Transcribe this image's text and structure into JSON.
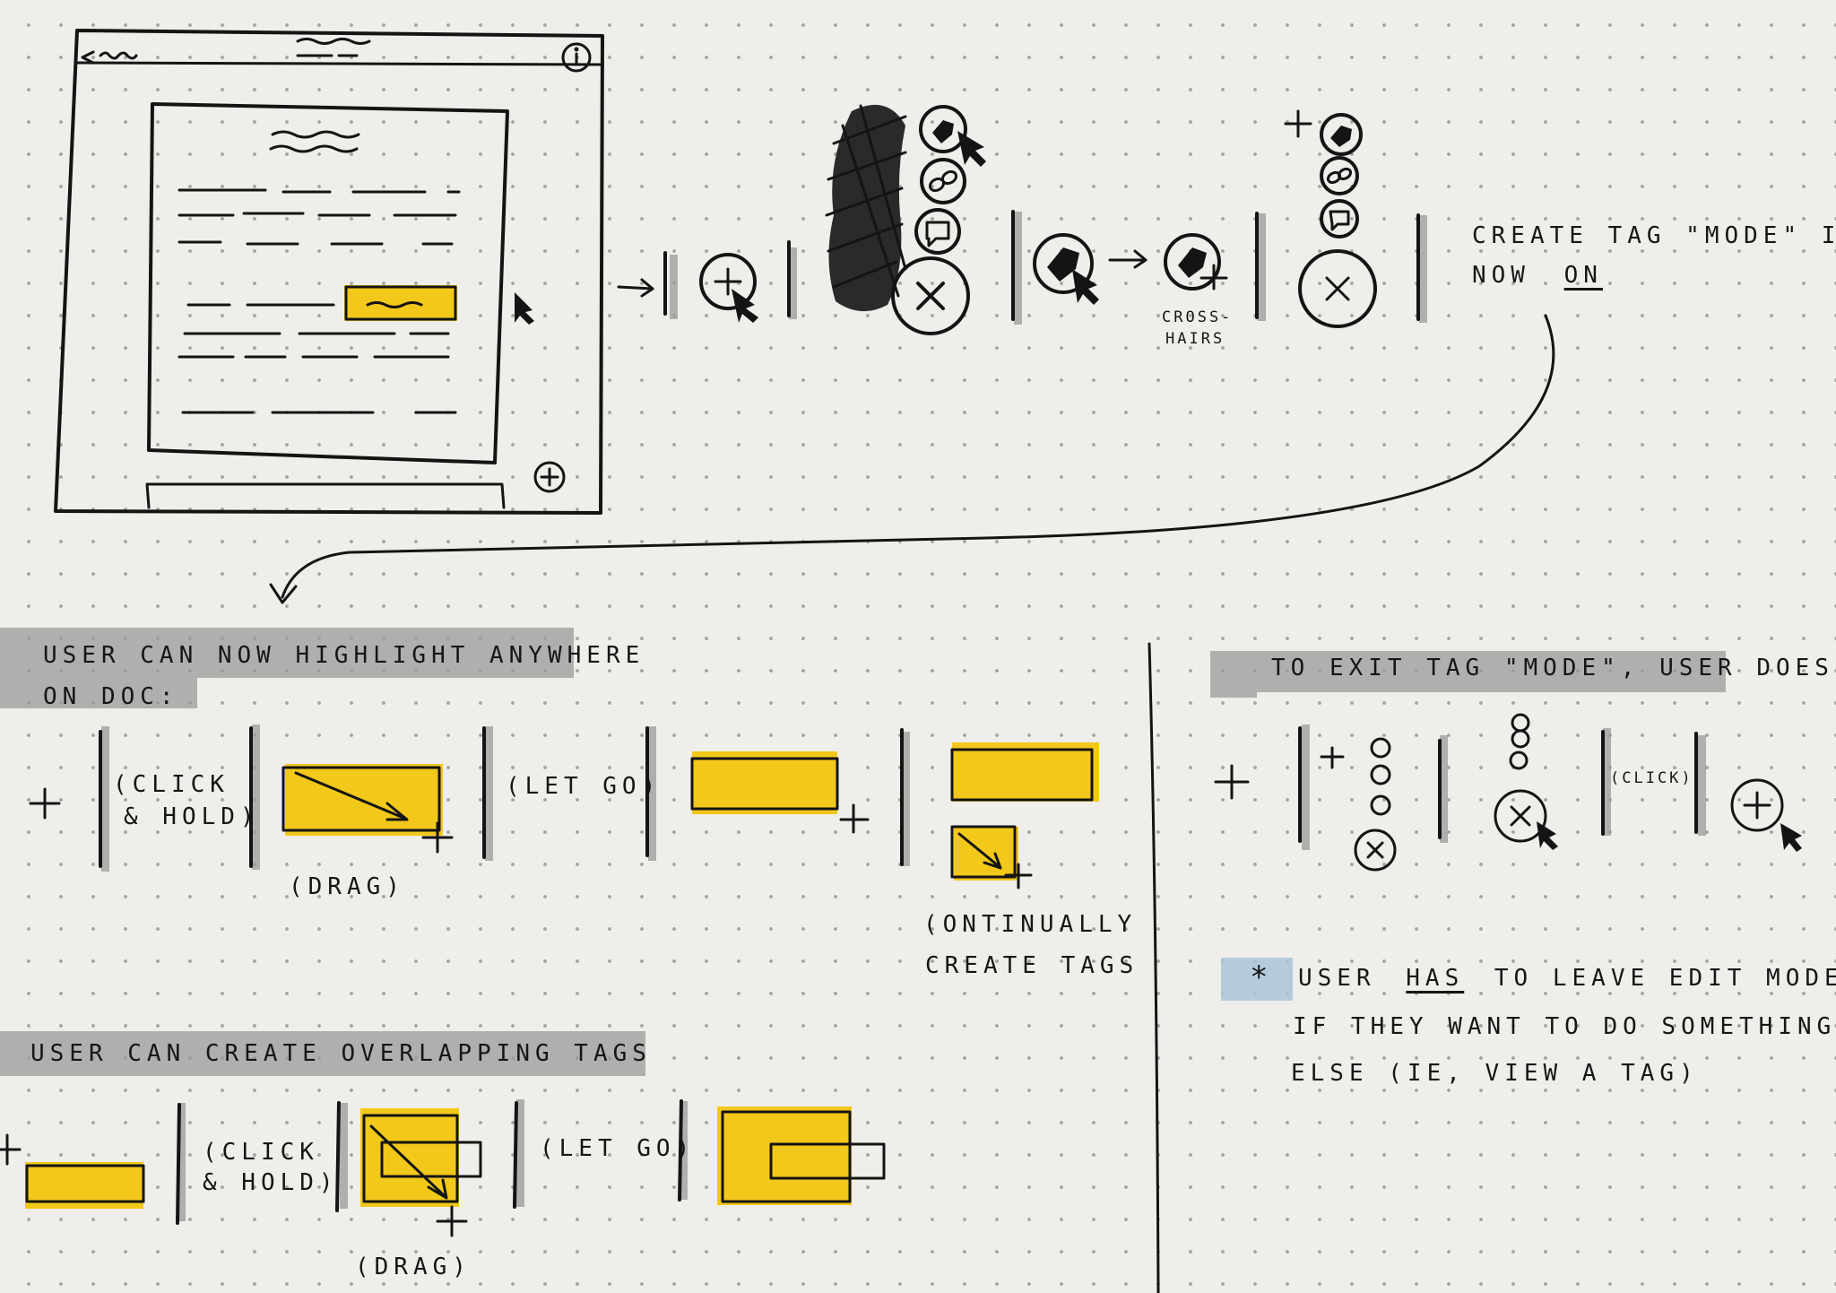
{
  "notes": {
    "mode_note_line1": "CREATE TAG \"MODE\" IS",
    "mode_note_now": "NOW",
    "mode_note_on": "ON",
    "crosshairs_line1": "CROSS-",
    "crosshairs_line2": "HAIRS",
    "section_highlight_line1": "USER CAN NOW HIGHLIGHT ANYWHERE",
    "section_highlight_line2": "ON DOC:",
    "click_hold_1": "(CLICK",
    "click_hold_2": "& HOLD)",
    "drag": "(DRAG)",
    "let_go": "(LET GO)",
    "continually_1": "(ONTINUALLY",
    "continually_2": "CREATE TAGS",
    "section_overlap": "USER CAN CREATE OVERLAPPING TAGS",
    "click_hold_b1": "(CLICK",
    "click_hold_b2": "& HOLD)",
    "let_go_b": "(LET GO)",
    "drag_b": "(DRAG)",
    "section_exit": "TO EXIT TAG \"MODE\", USER DOES:",
    "click_exit": "(CLICK)",
    "asterisk": "*",
    "user_note_pre": "USER",
    "user_note_has": "HAS",
    "user_note_post": "TO LEAVE EDIT MODE",
    "user_note_line2": "IF THEY WANT TO DO SOMETHING",
    "user_note_line3": "ELSE (IE, VIEW A TAG)"
  },
  "colors": {
    "paper": "#efeeea",
    "ink": "#141414",
    "highlighter_yellow": "#f2c81a",
    "grey_marker": "#9a9a9a",
    "blue_marker": "#a9c4d8"
  },
  "icons": [
    "chevron-left-icon",
    "info-icon",
    "plus-circle-icon",
    "tag-icon",
    "link-icon",
    "comment-icon",
    "close-circle-icon",
    "cursor-arrow-icon",
    "crosshair-icon"
  ]
}
